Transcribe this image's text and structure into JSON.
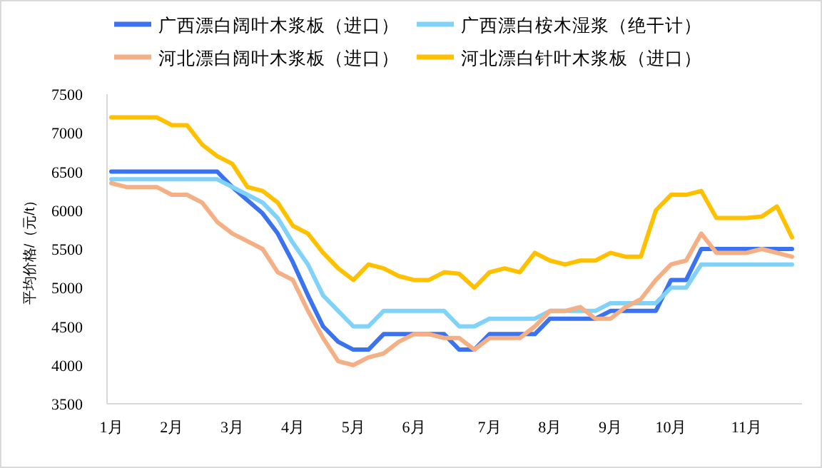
{
  "chart_data": {
    "type": "line",
    "ylabel": "平均价格/（元/t）",
    "categories": [
      "1月",
      null,
      null,
      null,
      "2月",
      null,
      null,
      null,
      "3月",
      null,
      null,
      null,
      "4月",
      null,
      null,
      null,
      "5月",
      null,
      null,
      null,
      "6月",
      null,
      null,
      null,
      null,
      "7月",
      null,
      null,
      null,
      "8月",
      null,
      null,
      null,
      "9月",
      null,
      null,
      null,
      "10月",
      null,
      null,
      null,
      null,
      "11月",
      null,
      null,
      null
    ],
    "ylim": [
      3500,
      7500
    ],
    "yticks": [
      3500,
      4000,
      4500,
      5000,
      5500,
      6000,
      6500,
      7000,
      7500
    ],
    "legend": "top",
    "series": [
      {
        "name": "广西漂白阔叶木浆板（进口）",
        "color": "#3a72f0",
        "values": [
          6500,
          6500,
          6500,
          6500,
          6500,
          6500,
          6500,
          6500,
          6300,
          6130,
          5960,
          5700,
          5330,
          4900,
          4500,
          4300,
          4200,
          4200,
          4400,
          4400,
          4400,
          4400,
          4400,
          4200,
          4200,
          4400,
          4400,
          4400,
          4400,
          4600,
          4600,
          4600,
          4600,
          4700,
          4700,
          4700,
          4700,
          5100,
          5100,
          5500,
          5500,
          5500,
          5500,
          5500,
          5500,
          5500
        ]
      },
      {
        "name": "广西漂白桉木湿浆（绝干计）",
        "color": "#80d2f8",
        "values": [
          6400,
          6400,
          6400,
          6400,
          6400,
          6400,
          6400,
          6400,
          6300,
          6200,
          6100,
          5900,
          5580,
          5300,
          4900,
          4700,
          4500,
          4500,
          4700,
          4700,
          4700,
          4700,
          4700,
          4500,
          4500,
          4600,
          4600,
          4600,
          4600,
          4700,
          4700,
          4700,
          4700,
          4800,
          4800,
          4800,
          4800,
          5000,
          5000,
          5300,
          5300,
          5300,
          5300,
          5300,
          5300,
          5300
        ]
      },
      {
        "name": "河北漂白阔叶木浆板（进口）",
        "color": "#f4b084",
        "values": [
          6350,
          6300,
          6300,
          6300,
          6200,
          6200,
          6100,
          5850,
          5700,
          5600,
          5500,
          5200,
          5100,
          4700,
          4350,
          4050,
          4000,
          4100,
          4150,
          4300,
          4400,
          4400,
          4350,
          4350,
          4200,
          4350,
          4350,
          4350,
          4500,
          4700,
          4700,
          4750,
          4600,
          4600,
          4750,
          4850,
          5100,
          5300,
          5350,
          5700,
          5450,
          5450,
          5450,
          5500,
          5450,
          5400
        ]
      },
      {
        "name": "河北漂白针叶木浆板（进口）",
        "color": "#ffc000",
        "values": [
          7200,
          7200,
          7200,
          7200,
          7100,
          7100,
          6850,
          6700,
          6600,
          6300,
          6250,
          6100,
          5800,
          5700,
          5450,
          5250,
          5100,
          5300,
          5250,
          5150,
          5100,
          5100,
          5200,
          5180,
          5000,
          5200,
          5250,
          5200,
          5450,
          5350,
          5300,
          5350,
          5350,
          5450,
          5400,
          5400,
          6000,
          6200,
          6200,
          6250,
          5900,
          5900,
          5900,
          5920,
          6050,
          5650
        ]
      }
    ]
  }
}
